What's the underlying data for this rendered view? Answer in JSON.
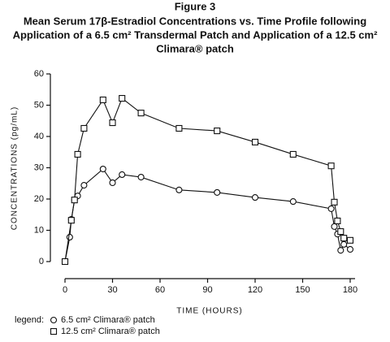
{
  "chart_data": {
    "type": "line",
    "title": "Figure 3",
    "subtitle": [
      "Mean Serum 17β-Estradiol Concentrations vs. Time Profile following",
      "Application of a 6.5 cm² Transdermal Patch and Application of a 12.5 cm²",
      "Climara® patch"
    ],
    "x_label": "TIME (HOURS)",
    "y_label": "CONCENTRATIONS (pg/mL)",
    "legend_title": "legend:",
    "xlim": [
      0,
      180
    ],
    "xticks": [
      0,
      30,
      60,
      90,
      120,
      150,
      180
    ],
    "ylim": [
      0,
      60
    ],
    "yticks": [
      0,
      10,
      20,
      30,
      40,
      50,
      60
    ],
    "series": [
      {
        "name": "6.5 cm² Climara® patch",
        "color": "#111111",
        "marker": "circle",
        "x": [
          0,
          3,
          4,
          6,
          8,
          12,
          24,
          30,
          36,
          48,
          72,
          96,
          120,
          144,
          168,
          170,
          172,
          174,
          176,
          180
        ],
        "values": [
          0,
          7.8,
          13.5,
          19.7,
          21,
          24.4,
          29.6,
          25.2,
          27.8,
          27,
          22.9,
          22.1,
          20.5,
          19.2,
          16.9,
          11.2,
          8.8,
          3.6,
          5.5,
          3.9
        ]
      },
      {
        "name": "12.5 cm² Climara® patch",
        "color": "#111111",
        "marker": "square",
        "x": [
          0,
          4,
          6,
          8,
          12,
          24,
          30,
          36,
          48,
          72,
          96,
          120,
          144,
          168,
          170,
          172,
          174,
          176,
          180
        ],
        "values": [
          0,
          13.2,
          19.7,
          34.3,
          42.6,
          51.7,
          44.4,
          52.2,
          47.5,
          42.6,
          41.8,
          38.2,
          34.3,
          30.6,
          19,
          13,
          9.6,
          7.5,
          6.8
        ]
      }
    ]
  }
}
